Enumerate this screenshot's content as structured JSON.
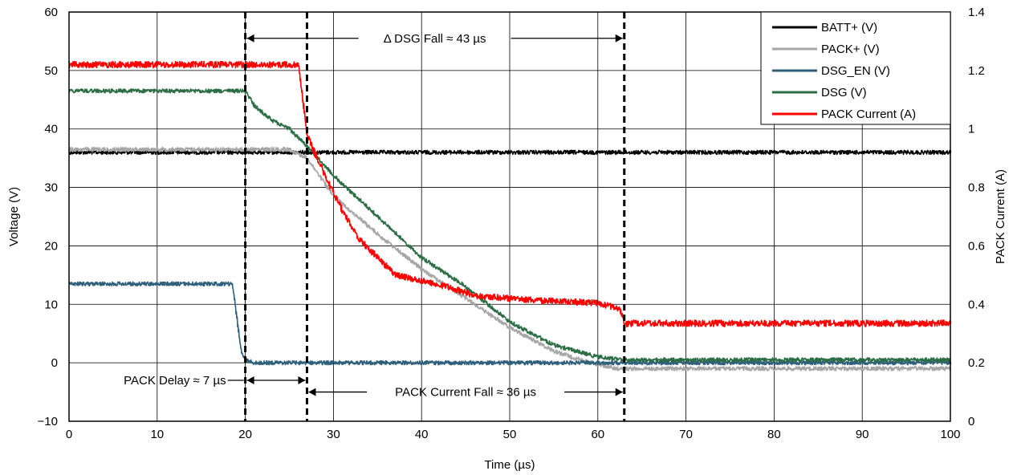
{
  "chart_data": {
    "type": "line",
    "xlabel": "Time (µs)",
    "ylabel": "Voltage (V)",
    "y2label": "PACK Current (A)",
    "xlim": [
      0,
      100
    ],
    "ylim": [
      -10,
      60
    ],
    "y2lim": [
      0,
      1.4
    ],
    "grid": true,
    "legend_position": "top-right",
    "x_ticks": [
      "0",
      "10",
      "20",
      "30",
      "40",
      "50",
      "60",
      "70",
      "80",
      "90",
      "100"
    ],
    "y_ticks": [
      "−10",
      "0",
      "10",
      "20",
      "30",
      "40",
      "50",
      "60"
    ],
    "y2_ticks": [
      "0",
      "0.2",
      "0.4",
      "0.6",
      "0.8",
      "1",
      "1.2",
      "1.4"
    ],
    "series": [
      {
        "name": "BATT+ (V)",
        "axis": "left",
        "color": "#000000",
        "x": [
          0,
          100
        ],
        "y": [
          36,
          36
        ]
      },
      {
        "name": "PACK+ (V)",
        "axis": "left",
        "color": "#a6a6a6",
        "x": [
          0,
          25,
          27,
          30,
          35,
          40,
          45,
          50,
          55,
          58,
          62,
          64,
          100
        ],
        "y": [
          36.5,
          36.5,
          35,
          28.5,
          22,
          16,
          11,
          6,
          2,
          0.5,
          -1,
          -1,
          -1
        ]
      },
      {
        "name": "DSG_EN (V)",
        "axis": "left",
        "color": "#2e5f7b",
        "x": [
          0,
          18.5,
          19,
          19.5,
          20,
          21,
          100
        ],
        "y": [
          13.5,
          13.5,
          8,
          2,
          0.5,
          0,
          0
        ]
      },
      {
        "name": "DSG (V)",
        "axis": "left",
        "color": "#2b6e45",
        "x": [
          0,
          20,
          21,
          23,
          25,
          27,
          30,
          35,
          40,
          45,
          50,
          55,
          60,
          63,
          100
        ],
        "y": [
          46.5,
          46.5,
          44,
          41.5,
          40,
          37,
          32,
          25,
          18,
          13,
          7,
          3,
          1,
          0.5,
          0.5
        ]
      },
      {
        "name": "PACK Current (A)",
        "axis": "right",
        "color": "#ff0000",
        "x": [
          0,
          26,
          27,
          29,
          31,
          33,
          35,
          37,
          40,
          43,
          46,
          50,
          55,
          60,
          62.5,
          63,
          64,
          100
        ],
        "y": [
          1.22,
          1.22,
          0.98,
          0.84,
          0.72,
          0.62,
          0.56,
          0.5,
          0.48,
          0.46,
          0.43,
          0.42,
          0.41,
          0.405,
          0.385,
          0.33,
          0.335,
          0.335
        ]
      }
    ],
    "markers_x": [
      20,
      27,
      63
    ],
    "annotations": [
      {
        "text": "Δ DSG Fall ≈ 43 µs",
        "from_x": 20,
        "to_x": 63,
        "y": 55.5
      },
      {
        "text": "PACK Delay ≈ 7 µs",
        "from_x": 20,
        "to_x": 27,
        "y": -3
      },
      {
        "text": "PACK Current Fall ≈ 36 µs",
        "from_x": 27,
        "to_x": 63,
        "y": -5
      }
    ]
  }
}
